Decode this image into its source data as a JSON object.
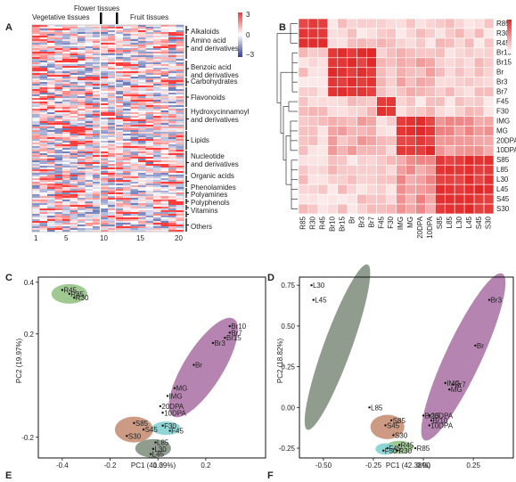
{
  "panels": {
    "A": {
      "letter": "A",
      "group_labels": [
        "Vegetative tissues",
        "Flower tissues",
        "Fruit tissues"
      ],
      "color_scale_ticks": [
        "3",
        "0",
        "−3"
      ],
      "categories": [
        "Alkaloids",
        "Amino acid and derivatives",
        "Benzoic acid and derivatives",
        "Carbohydrates",
        "Flavonoids",
        "Hydroxycinnamoyl and derivatives",
        "Lipids",
        "Nucleotide and derivatives",
        "Organic acids",
        "Phenolamides",
        "Polyamines",
        "Polyphenols",
        "Vitamins",
        "Others"
      ],
      "x_ticks": [
        "1",
        "5",
        "10",
        "15",
        "20"
      ]
    },
    "B": {
      "letter": "B",
      "samples": [
        "R85",
        "R30",
        "R45",
        "Br10",
        "Br15",
        "Br",
        "Br3",
        "Br7",
        "F45",
        "F30",
        "IMG",
        "MG",
        "20DPA",
        "10DPA",
        "S85",
        "L85",
        "L30",
        "L45",
        "S45",
        "S30"
      ]
    },
    "C": {
      "letter": "C",
      "chart_data": {
        "type": "scatter",
        "xlabel": "PC1 (41.39%)",
        "ylabel": "PC2 (19.97%)",
        "xlim": [
          -0.5,
          0.45
        ],
        "ylim": [
          -0.28,
          0.42
        ],
        "xticks": [
          "-0.4",
          "-0.2",
          "0.0",
          "0.2"
        ],
        "yticks": [
          "0.4",
          "0.2",
          "-0.2"
        ],
        "xtick_values": [
          -0.4,
          -0.2,
          0.0,
          0.2
        ],
        "ytick_values": [
          0.4,
          0.2,
          -0.2
        ],
        "points": [
          {
            "label": "R45",
            "x": -0.4,
            "y": 0.37
          },
          {
            "label": "R85",
            "x": -0.37,
            "y": 0.355
          },
          {
            "label": "R30",
            "x": -0.35,
            "y": 0.34
          },
          {
            "label": "Br10",
            "x": 0.3,
            "y": 0.23
          },
          {
            "label": "Br7",
            "x": 0.3,
            "y": 0.205
          },
          {
            "label": "Br15",
            "x": 0.28,
            "y": 0.185
          },
          {
            "label": "Br3",
            "x": 0.23,
            "y": 0.165
          },
          {
            "label": "Br",
            "x": 0.15,
            "y": 0.08
          },
          {
            "label": "MG",
            "x": 0.07,
            "y": -0.01
          },
          {
            "label": "IMG",
            "x": 0.04,
            "y": -0.04
          },
          {
            "label": "20DPA",
            "x": 0.01,
            "y": -0.08
          },
          {
            "label": "10DPA",
            "x": 0.02,
            "y": -0.105
          },
          {
            "label": "S85",
            "x": -0.1,
            "y": -0.145
          },
          {
            "label": "S45",
            "x": -0.06,
            "y": -0.17
          },
          {
            "label": "S30",
            "x": -0.13,
            "y": -0.195
          },
          {
            "label": "F30",
            "x": 0.02,
            "y": -0.155
          },
          {
            "label": "F45",
            "x": 0.05,
            "y": -0.175
          },
          {
            "label": "L85",
            "x": -0.01,
            "y": -0.22
          },
          {
            "label": "L30",
            "x": -0.02,
            "y": -0.245
          },
          {
            "label": "L45",
            "x": -0.03,
            "y": -0.265
          }
        ],
        "clusters": [
          {
            "color": "#8ec07c",
            "cx": -0.37,
            "cy": 0.355,
            "rx": 0.075,
            "ry": 0.038,
            "rot": 0
          },
          {
            "color": "#a96ea3",
            "cx": 0.19,
            "cy": 0.07,
            "rx": 0.24,
            "ry": 0.075,
            "rot": -58
          },
          {
            "color": "#c48a6e",
            "cx": -0.1,
            "cy": -0.17,
            "rx": 0.08,
            "ry": 0.05,
            "rot": 0
          },
          {
            "color": "#7ecfcf",
            "cx": 0.035,
            "cy": -0.165,
            "rx": 0.06,
            "ry": 0.026,
            "rot": 0
          },
          {
            "color": "#7d8c7a",
            "cx": -0.02,
            "cy": -0.243,
            "rx": 0.075,
            "ry": 0.036,
            "rot": 0
          }
        ]
      }
    },
    "D": {
      "letter": "D",
      "chart_data": {
        "type": "scatter",
        "xlabel": "PC1 (42.38%)",
        "ylabel": "PC2 (18.82%)",
        "xlim": [
          -0.62,
          0.45
        ],
        "ylim": [
          -0.31,
          0.8
        ],
        "xticks": [
          "-0.50",
          "-0.25",
          "0.00",
          "0.25"
        ],
        "yticks": [
          "0.75",
          "0.50",
          "0.25",
          "0.00",
          "-0.25"
        ],
        "xtick_values": [
          -0.5,
          -0.25,
          0.0,
          0.25
        ],
        "ytick_values": [
          0.75,
          0.5,
          0.25,
          0.0,
          -0.25
        ],
        "points": [
          {
            "label": "L30",
            "x": -0.56,
            "y": 0.75
          },
          {
            "label": "L45",
            "x": -0.55,
            "y": 0.66
          },
          {
            "label": "L85",
            "x": -0.27,
            "y": 0.0
          },
          {
            "label": "Br3",
            "x": 0.33,
            "y": 0.66
          },
          {
            "label": "Br",
            "x": 0.26,
            "y": 0.38
          },
          {
            "label": "IMG",
            "x": 0.11,
            "y": 0.15
          },
          {
            "label": "Br7",
            "x": 0.15,
            "y": 0.14
          },
          {
            "label": "MG",
            "x": 0.13,
            "y": 0.11
          },
          {
            "label": "20DPA",
            "x": 0.03,
            "y": -0.05
          },
          {
            "label": "Br15",
            "x": 0.0,
            "y": -0.05
          },
          {
            "label": "Br10",
            "x": 0.04,
            "y": -0.08
          },
          {
            "label": "10DPA",
            "x": 0.03,
            "y": -0.11
          },
          {
            "label": "S85",
            "x": -0.16,
            "y": -0.08
          },
          {
            "label": "S45",
            "x": -0.19,
            "y": -0.11
          },
          {
            "label": "S30",
            "x": -0.15,
            "y": -0.17
          },
          {
            "label": "R45",
            "x": -0.12,
            "y": -0.23
          },
          {
            "label": "F45",
            "x": -0.18,
            "y": -0.25
          },
          {
            "label": "R85",
            "x": -0.04,
            "y": -0.25
          },
          {
            "label": "F30",
            "x": -0.2,
            "y": -0.265
          },
          {
            "label": "R30",
            "x": -0.13,
            "y": -0.265
          }
        ],
        "clusters": [
          {
            "color": "#7d8c7a",
            "cx": -0.43,
            "cy": 0.37,
            "rx": 0.44,
            "ry": 0.085,
            "rot": -70
          },
          {
            "color": "#a96ea3",
            "cx": 0.2,
            "cy": 0.31,
            "rx": 0.46,
            "ry": 0.11,
            "rot": -65
          },
          {
            "color": "#c48a6e",
            "cx": -0.18,
            "cy": -0.12,
            "rx": 0.085,
            "ry": 0.075,
            "rot": 0
          },
          {
            "color": "#8ec07c",
            "cx": -0.12,
            "cy": -0.245,
            "rx": 0.07,
            "ry": 0.04,
            "rot": 0
          },
          {
            "color": "#7ecfcf",
            "cx": -0.19,
            "cy": -0.255,
            "rx": 0.05,
            "ry": 0.035,
            "rot": 0
          }
        ]
      }
    },
    "E": {
      "letter": "E"
    },
    "F": {
      "letter": "F"
    }
  }
}
